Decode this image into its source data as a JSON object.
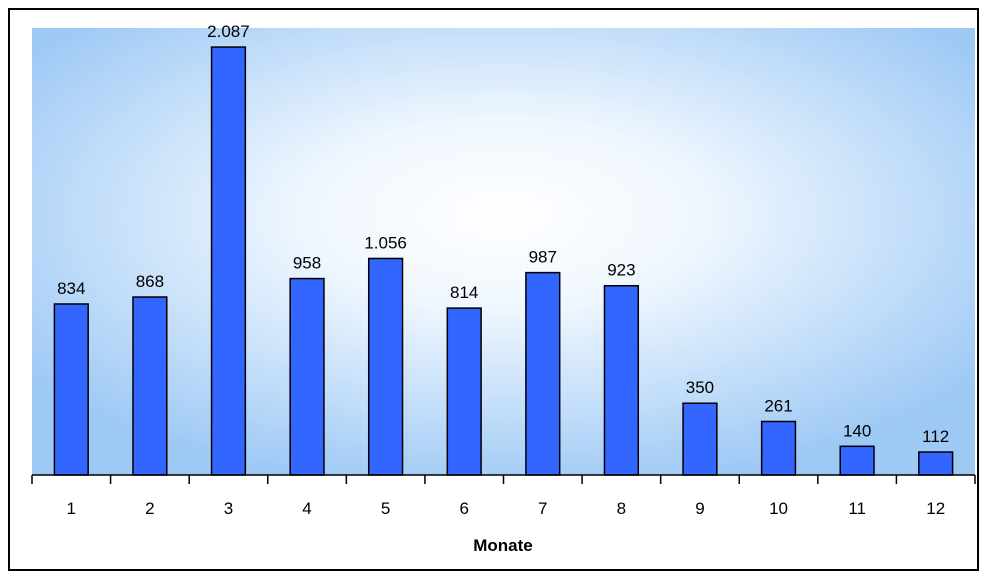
{
  "chart_data": {
    "type": "bar",
    "title": "",
    "xlabel": "Monate",
    "ylabel": "",
    "categories": [
      "1",
      "2",
      "3",
      "4",
      "5",
      "6",
      "7",
      "8",
      "9",
      "10",
      "11",
      "12"
    ],
    "values": [
      834,
      868,
      2087,
      958,
      1056,
      814,
      987,
      923,
      350,
      261,
      140,
      112
    ],
    "value_labels": [
      "834",
      "868",
      "2.087",
      "958",
      "1.056",
      "814",
      "987",
      "923",
      "350",
      "261",
      "140",
      "112"
    ],
    "ylim": [
      0,
      2180
    ],
    "grid": false,
    "legend": "none",
    "colors": {
      "bar": "#3366ff",
      "bar_edge": "#000000",
      "plot_bg_edge": "#9ec9f5",
      "plot_bg_center": "#ffffff"
    }
  }
}
